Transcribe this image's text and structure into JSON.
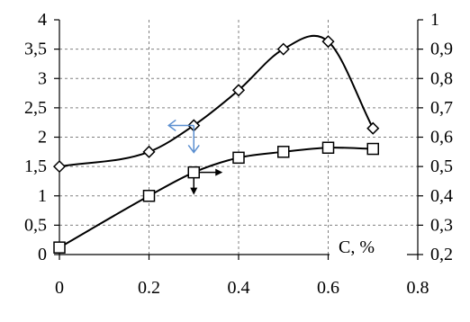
{
  "chart_data": {
    "type": "line",
    "xlabel": "C, %",
    "xlim": [
      0,
      0.8
    ],
    "x_ticks": [
      "0",
      "0.2",
      "0.4",
      "0.6",
      "0.8"
    ],
    "y_left": {
      "lim": [
        0,
        4
      ],
      "ticks": [
        "0",
        "0,5",
        "1",
        "1,5",
        "2",
        "2,5",
        "3",
        "3,5",
        "4"
      ]
    },
    "y_right": {
      "lim": [
        0.2,
        1.0
      ],
      "ticks": [
        "0,2",
        "0,3",
        "0,4",
        "0,5",
        "0,6",
        "0,7",
        "0,8",
        "0,9",
        "1"
      ]
    },
    "grid": true,
    "series": [
      {
        "marker": "diamond",
        "axis": "left",
        "x": [
          0,
          0.2,
          0.3,
          0.4,
          0.5,
          0.6,
          0.7
        ],
        "y": [
          1.5,
          1.75,
          2.2,
          2.8,
          3.5,
          3.63,
          2.15
        ],
        "arrow_direction": "left",
        "arrow_color": "#5b8fd0"
      },
      {
        "marker": "square",
        "axis": "left",
        "x": [
          0,
          0.2,
          0.3,
          0.4,
          0.5,
          0.6,
          0.7
        ],
        "y": [
          0.12,
          1.0,
          1.4,
          1.65,
          1.75,
          1.82,
          1.8
        ],
        "arrow_direction": "right",
        "arrow_color": "#000000"
      }
    ]
  }
}
